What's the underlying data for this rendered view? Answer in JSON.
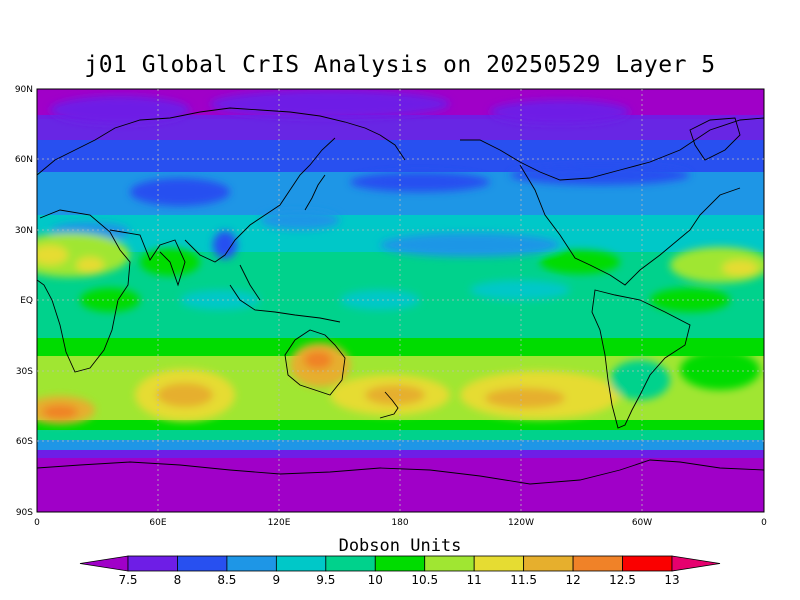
{
  "title": "j01 Global CrIS Analysis on 20250529 Layer 5",
  "lat_labels": [
    "90N",
    "60N",
    "30N",
    "EQ",
    "30S",
    "60S",
    "90S"
  ],
  "lon_labels": [
    "0",
    "60E",
    "120E",
    "180",
    "120W",
    "60W",
    "0"
  ],
  "colorbar": {
    "title": "Dobson Units",
    "labels": [
      "7.5",
      "8",
      "8.5",
      "9",
      "9.5",
      "10",
      "10.5",
      "11",
      "11.5",
      "12",
      "12.5",
      "13"
    ],
    "colors": [
      "#a000c8",
      "#6e1ee6",
      "#2850f0",
      "#1e96e6",
      "#00c8c8",
      "#00d28c",
      "#00dc00",
      "#a0e632",
      "#e6dc32",
      "#e6af2d",
      "#f08228",
      "#fa0000",
      "#e6006e"
    ]
  },
  "legend_colors": {
    "c75": "#a000c8",
    "c8": "#6e1ee6",
    "c85": "#2850f0",
    "c9": "#1e96e6",
    "c95": "#00c8c8",
    "c10": "#00d28c",
    "c105": "#00dc00",
    "c11": "#a0e632",
    "c115": "#e6dc32",
    "c12": "#e6af2d",
    "c125": "#f08228",
    "c13": "#fa0000"
  }
}
